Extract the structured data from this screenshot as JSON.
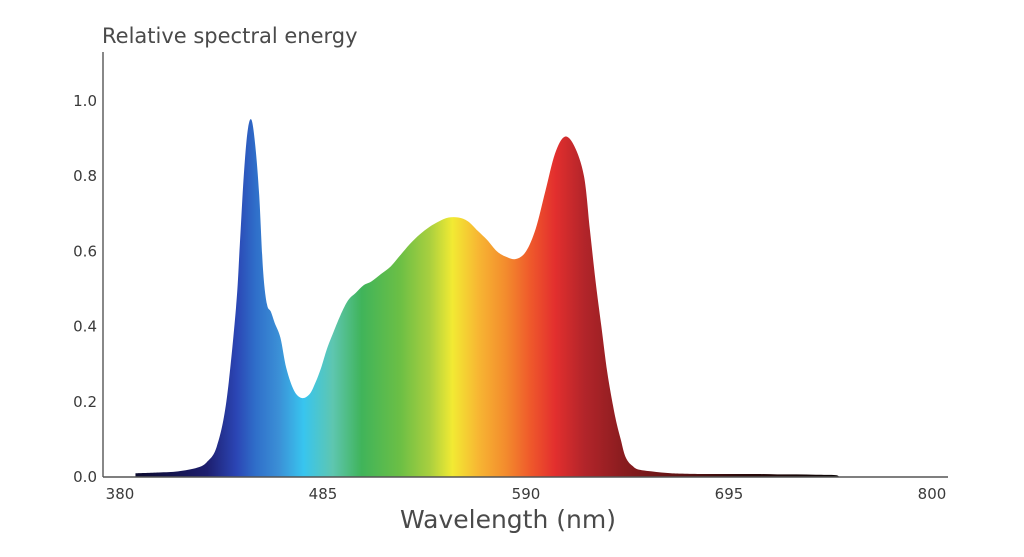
{
  "chart_data": {
    "type": "area",
    "title": "",
    "ylabel": "Relative spectral energy",
    "xlabel": "Wavelength (nm)",
    "xlim": [
      380,
      800
    ],
    "ylim": [
      0,
      1.12
    ],
    "x_ticks": [
      "380",
      "485",
      "590",
      "695",
      "800"
    ],
    "y_ticks": [
      "0.0",
      "0.2",
      "0.4",
      "0.6",
      "0.8",
      "1.0"
    ],
    "grid": false,
    "series": [
      {
        "x": [
          388,
          400,
          410,
          420,
          425,
          430,
          435,
          440,
          442,
          444,
          446,
          448,
          450,
          452,
          454,
          456,
          458,
          460,
          463,
          466,
          470,
          474,
          478,
          481,
          484,
          487,
          490,
          494,
          498,
          502,
          506,
          510,
          515,
          520,
          525,
          530,
          535,
          540,
          545,
          550,
          555,
          560,
          565,
          570,
          575,
          580,
          585,
          590,
          595,
          600,
          605,
          610,
          615,
          620,
          623,
          626,
          629,
          632,
          635,
          637,
          639,
          641,
          643,
          645,
          647,
          650,
          655,
          660,
          665,
          670,
          680,
          690,
          700,
          710,
          720,
          730,
          740,
          750,
          752
        ],
        "y": [
          0.01,
          0.012,
          0.015,
          0.025,
          0.04,
          0.08,
          0.2,
          0.45,
          0.62,
          0.8,
          0.92,
          0.95,
          0.88,
          0.75,
          0.55,
          0.46,
          0.44,
          0.41,
          0.37,
          0.29,
          0.23,
          0.21,
          0.22,
          0.25,
          0.29,
          0.34,
          0.38,
          0.43,
          0.47,
          0.49,
          0.51,
          0.52,
          0.54,
          0.56,
          0.59,
          0.62,
          0.645,
          0.665,
          0.68,
          0.69,
          0.69,
          0.68,
          0.655,
          0.63,
          0.6,
          0.585,
          0.58,
          0.6,
          0.66,
          0.76,
          0.86,
          0.905,
          0.88,
          0.8,
          0.66,
          0.52,
          0.4,
          0.28,
          0.19,
          0.14,
          0.1,
          0.06,
          0.04,
          0.03,
          0.022,
          0.018,
          0.015,
          0.012,
          0.01,
          0.009,
          0.008,
          0.008,
          0.008,
          0.008,
          0.007,
          0.007,
          0.006,
          0.005,
          0.0
        ]
      }
    ]
  },
  "colors": {
    "axis": "#555555",
    "text": "#3a3a3a",
    "spectrum_stops": [
      {
        "nm": 388,
        "color": "#0c0a2e"
      },
      {
        "nm": 425,
        "color": "#1d1e6e"
      },
      {
        "nm": 440,
        "color": "#2b45b4"
      },
      {
        "nm": 450,
        "color": "#2f6ec9"
      },
      {
        "nm": 462,
        "color": "#3b8fd6"
      },
      {
        "nm": 475,
        "color": "#38c5ef"
      },
      {
        "nm": 490,
        "color": "#5ec6b0"
      },
      {
        "nm": 505,
        "color": "#40b45a"
      },
      {
        "nm": 525,
        "color": "#6cbf45"
      },
      {
        "nm": 540,
        "color": "#a8cf3f"
      },
      {
        "nm": 552,
        "color": "#f2ea33"
      },
      {
        "nm": 565,
        "color": "#f7b733"
      },
      {
        "nm": 580,
        "color": "#f38a2d"
      },
      {
        "nm": 592,
        "color": "#ef5a2b"
      },
      {
        "nm": 605,
        "color": "#e32f2e"
      },
      {
        "nm": 620,
        "color": "#b3252a"
      },
      {
        "nm": 640,
        "color": "#8a1c1f"
      },
      {
        "nm": 670,
        "color": "#5e1314"
      },
      {
        "nm": 700,
        "color": "#2e0b0b"
      },
      {
        "nm": 752,
        "color": "#0a0505"
      }
    ]
  }
}
